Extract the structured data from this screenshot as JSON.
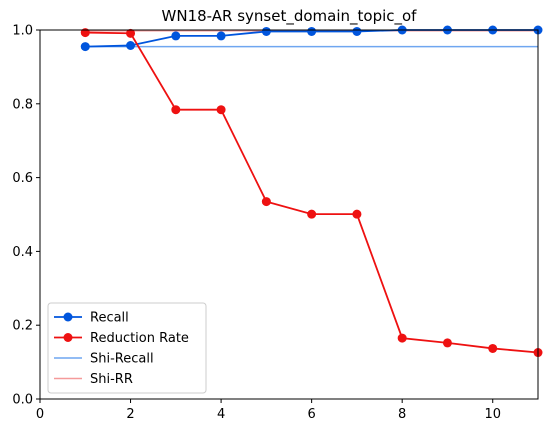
{
  "chart_data": {
    "type": "line",
    "title": "WN18-AR synset_domain_topic_of",
    "xlabel": "",
    "ylabel": "",
    "xlim": [
      0,
      11
    ],
    "ylim": [
      0,
      1.0
    ],
    "xticks": [
      "0",
      "2",
      "4",
      "6",
      "8",
      "10"
    ],
    "yticks": [
      "0.0",
      "0.2",
      "0.4",
      "0.6",
      "0.8",
      "1.0"
    ],
    "grid": false,
    "legend_position": "lower-left",
    "series": [
      {
        "name": "Recall",
        "color": "#0055dd",
        "marker": "circle",
        "x": [
          1,
          2,
          3,
          4,
          5,
          6,
          7,
          8,
          9,
          10,
          11
        ],
        "y": [
          0.955,
          0.958,
          0.984,
          0.984,
          0.996,
          0.996,
          0.996,
          1.0,
          1.0,
          1.0,
          1.0
        ]
      },
      {
        "name": "Reduction Rate",
        "color": "#ee1111",
        "marker": "circle",
        "x": [
          1,
          2,
          3,
          4,
          5,
          6,
          7,
          8,
          9,
          10,
          11
        ],
        "y": [
          0.993,
          0.991,
          0.784,
          0.784,
          0.535,
          0.501,
          0.501,
          0.165,
          0.152,
          0.137,
          0.126
        ]
      }
    ],
    "reference_lines": [
      {
        "name": "Shi-Recall",
        "color": "#6fa6f0",
        "y": 0.955,
        "x_from": 1,
        "x_to": 11
      },
      {
        "name": "Shi-RR",
        "color": "#f59a9a",
        "y": 0.998,
        "x_from": 1,
        "x_to": 11
      }
    ]
  }
}
